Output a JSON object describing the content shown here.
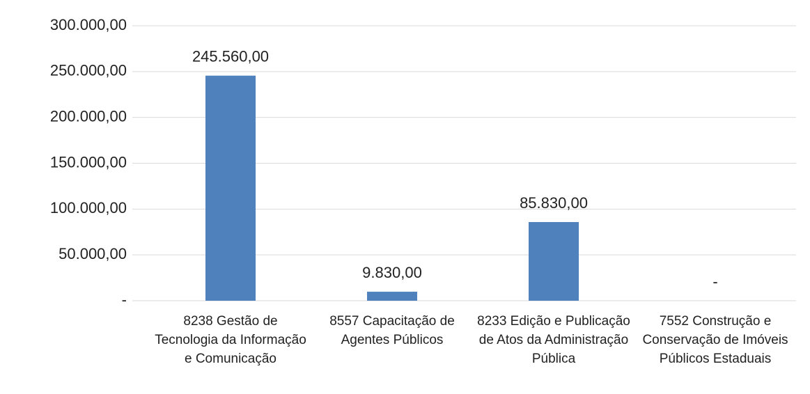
{
  "chart_data": {
    "type": "bar",
    "categories": [
      "8238   Gestão de Tecnologia da Informação e Comunicação",
      "8557   Capacitação de Agentes Públicos",
      "8233   Edição e Publicação de Atos da Administração Pública",
      "7552   Construção e Conservação de Imóveis Públicos Estaduais"
    ],
    "values": [
      245560,
      9830,
      85830,
      0
    ],
    "value_labels": [
      "245.560,00",
      "9.830,00",
      "85.830,00",
      "-"
    ],
    "color": "#4f81bd",
    "ylim": [
      0,
      300000
    ],
    "yticks": [
      {
        "value": 0,
        "label": "-"
      },
      {
        "value": 50000,
        "label": "50.000,00"
      },
      {
        "value": 100000,
        "label": "100.000,00"
      },
      {
        "value": 150000,
        "label": "150.000,00"
      },
      {
        "value": 200000,
        "label": "200.000,00"
      },
      {
        "value": 250000,
        "label": "250.000,00"
      },
      {
        "value": 300000,
        "label": "300.000,00"
      }
    ],
    "grid": true
  }
}
